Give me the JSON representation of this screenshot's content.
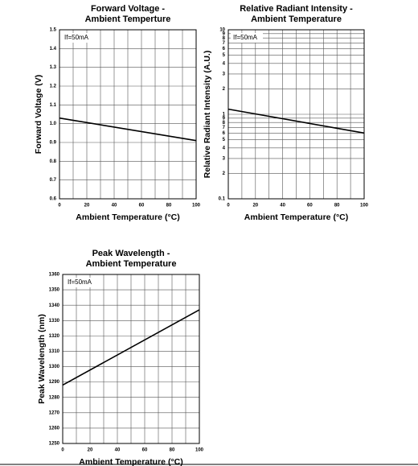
{
  "chart_data": [
    {
      "type": "line",
      "title": [
        "Forward Voltage -",
        "Ambient Temperture"
      ],
      "x_label": "Ambient Temperature (°C)",
      "y_label": "Forward Voltage (V)",
      "annotation": "If=50mA",
      "x": [
        0,
        100
      ],
      "values": [
        1.03,
        0.91
      ],
      "color": "#000000",
      "xlim": [
        0,
        100
      ],
      "xticks": [
        0,
        20,
        40,
        60,
        80,
        100
      ],
      "xminorticks": [
        10,
        30,
        50,
        70,
        90
      ],
      "ylim": [
        0.6,
        1.5
      ],
      "yticks": [
        0.6,
        0.7,
        0.8,
        0.9,
        {
          "value": 1,
          "label": "1.0"
        },
        1.1,
        1.2,
        1.3,
        1.4,
        1.5
      ],
      "grid": true,
      "log_y": false
    },
    {
      "type": "line",
      "title": [
        "Relative Radiant Intensity -",
        "Ambient Temperature"
      ],
      "x_label": "Ambient Temperature (°C)",
      "y_label": "Relative Radiant Intensity (A.U.)",
      "annotation": "If=50mA",
      "x": [
        0,
        100
      ],
      "values": [
        1.15,
        0.6
      ],
      "color": "#000000",
      "xlim": [
        0,
        100
      ],
      "xticks": [
        0,
        20,
        40,
        60,
        80,
        100
      ],
      "xminorticks": [
        10,
        30,
        50,
        70,
        90
      ],
      "ylim": [
        0.1,
        10
      ],
      "yticks": [
        0.1,
        {
          "value": 0.2,
          "label": "2"
        },
        {
          "value": 0.3,
          "label": "3"
        },
        {
          "value": 0.4,
          "label": "4"
        },
        {
          "value": 0.5,
          "label": "5"
        },
        {
          "value": 0.6,
          "label": "6"
        },
        {
          "value": 0.7,
          "label": "7"
        },
        {
          "value": 0.8,
          "label": "8"
        },
        {
          "value": 0.9,
          "label": "9"
        },
        1,
        2,
        3,
        4,
        5,
        6,
        7,
        8,
        9,
        10
      ],
      "grid": true,
      "log_y": true
    },
    {
      "type": "line",
      "title": [
        "Peak Wavelength -",
        "Ambient Temperature"
      ],
      "x_label": "Ambient Temperature (°C)",
      "y_label": "Peak Wavelength (nm)",
      "annotation": "If=50mA",
      "x": [
        0,
        100
      ],
      "values": [
        1288,
        1337
      ],
      "color": "#000000",
      "xlim": [
        0,
        100
      ],
      "xticks": [
        0,
        20,
        40,
        60,
        80,
        100
      ],
      "xminorticks": [
        10,
        30,
        50,
        70,
        90
      ],
      "ylim": [
        1250,
        1360
      ],
      "yticks": [
        1250,
        1260,
        1270,
        1280,
        1290,
        1300,
        1310,
        1320,
        1330,
        1340,
        1350,
        1360
      ],
      "grid": true,
      "log_y": false
    }
  ]
}
